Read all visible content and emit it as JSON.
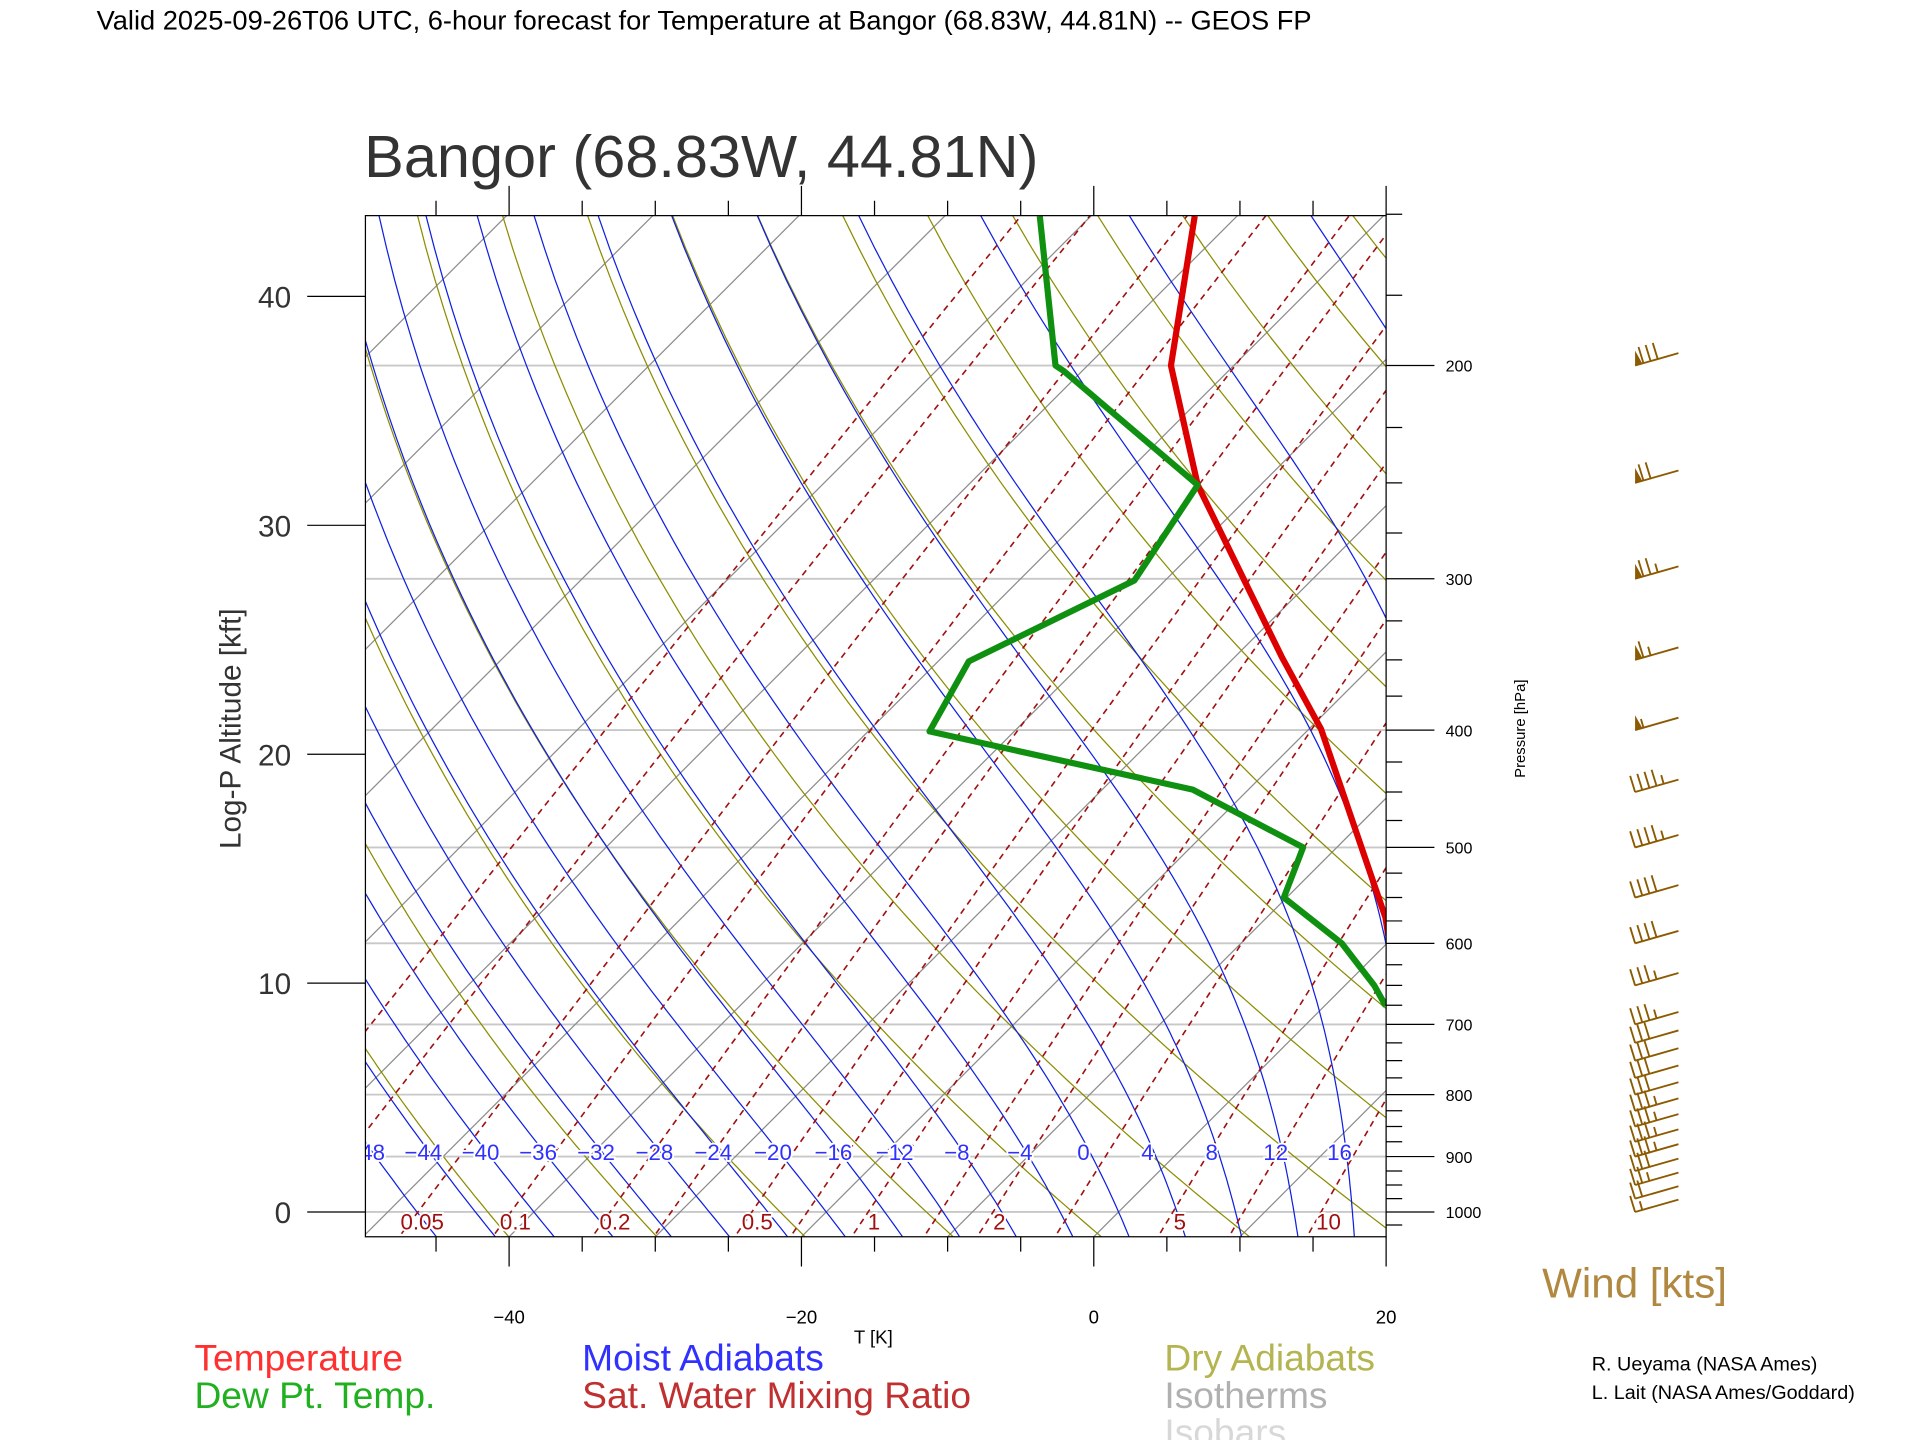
{
  "header": {
    "title": "Valid 2025-09-26T06 UTC, 6-hour forecast for Temperature at Bangor (68.83W, 44.81N) -- GEOS FP",
    "plot_title": "Bangor (68.83W, 44.81N)"
  },
  "chart_data": {
    "type": "line",
    "subtype": "skew-T log-P diagram",
    "title": "Bangor (68.83W, 44.81N)",
    "xlabel": "T [K]",
    "ylabel": "Log-P Altitude [kft]",
    "y2label": "Pressure [hPa]",
    "xlim": [
      -50,
      20
    ],
    "pressure_range_hpa": [
      1048,
      150
    ],
    "x_ticks": [
      -40,
      -20,
      0,
      20
    ],
    "x_tick_labels": [
      "−40",
      "−20",
      "0",
      "20"
    ],
    "altitude_ticks_kft": [
      0,
      10,
      20,
      30,
      40
    ],
    "altitude_tick_labels": [
      "0",
      "10",
      "20",
      "30",
      "40"
    ],
    "pressure_ticks": [
      200,
      300,
      400,
      500,
      600,
      700,
      800,
      900,
      1000
    ],
    "pressure_tick_labels": [
      "200",
      "300",
      "400",
      "500",
      "600",
      "700",
      "800",
      "900",
      "1000"
    ],
    "series": [
      {
        "name": "Temperature",
        "color": "#dd0000",
        "points": [
          [
            150.5,
            -62.9
          ],
          [
            200,
            -54.3
          ],
          [
            251,
            -44.3
          ],
          [
            348,
            -26.8
          ],
          [
            399,
            -19.2
          ],
          [
            571,
            -1.9
          ],
          [
            650,
            3.5
          ],
          [
            700,
            7.0
          ]
        ]
      },
      {
        "name": "Dew Pt. Temp.",
        "color": "#109010",
        "points": [
          [
            150.5,
            -73.5
          ],
          [
            200,
            -62.2
          ],
          [
            202,
            -61.3
          ],
          [
            251,
            -44.3
          ],
          [
            301,
            -42.1
          ],
          [
            351,
            -47.9
          ],
          [
            401,
            -45.8
          ],
          [
            448,
            -23.8
          ],
          [
            500,
            -12.3
          ],
          [
            550,
            -10.2
          ],
          [
            600,
            -3.1
          ],
          [
            650,
            2.0
          ],
          [
            676,
            4.2
          ]
        ]
      }
    ],
    "background_lines": {
      "isotherms_c": [
        -120,
        -110,
        -100,
        -90,
        -80,
        -70,
        -60,
        -50,
        -40,
        -30,
        -20,
        -10,
        0,
        10,
        20,
        30,
        40
      ],
      "dry_adiabats_k": [
        220,
        230,
        240,
        250,
        260,
        270,
        280,
        290,
        300,
        310,
        320,
        330,
        340,
        350,
        360,
        370,
        380,
        390,
        400,
        410,
        420,
        430,
        440,
        450,
        460,
        470,
        480
      ],
      "moist_adiabats_c": [
        -48,
        -44,
        -40,
        -36,
        -32,
        -28,
        -24,
        -20,
        -16,
        -12,
        -8,
        -4,
        0,
        4,
        8,
        12,
        16,
        20,
        24,
        28
      ],
      "moist_adiabat_labels": [
        "−48",
        "−44",
        "−40",
        "−36",
        "−32",
        "−28",
        "−24",
        "−20",
        "−16",
        "−12",
        "−8",
        "−4",
        "0",
        "4",
        "8",
        "12",
        "16"
      ],
      "mixing_ratio_lines_gkg": [
        0.01,
        0.02,
        0.05,
        0.1,
        0.2,
        0.3,
        0.5,
        0.7,
        1,
        1.5,
        2,
        3,
        5,
        7,
        10,
        15,
        20
      ],
      "mixing_ratio_labels": [
        [
          "0.05",
          0.05
        ],
        [
          "0.1",
          0.1
        ],
        [
          "0.2",
          0.2
        ],
        [
          "0.5",
          0.5
        ],
        [
          "1",
          1
        ],
        [
          "2",
          2
        ],
        [
          "5",
          5
        ],
        [
          "10",
          10
        ]
      ],
      "isobars_hpa": [
        200,
        300,
        400,
        500,
        600,
        700,
        800,
        900,
        1000
      ]
    },
    "wind": {
      "label": "Wind [kts]",
      "levels": [
        {
          "p": 200,
          "kts": 80
        },
        {
          "p": 250,
          "kts": 70
        },
        {
          "p": 300,
          "kts": 75
        },
        {
          "p": 350,
          "kts": 65
        },
        {
          "p": 400,
          "kts": 55
        },
        {
          "p": 450,
          "kts": 45
        },
        {
          "p": 500,
          "kts": 45
        },
        {
          "p": 550,
          "kts": 40
        },
        {
          "p": 600,
          "kts": 40
        },
        {
          "p": 650,
          "kts": 35
        },
        {
          "p": 700,
          "kts": 35
        },
        {
          "p": 725,
          "kts": 30
        },
        {
          "p": 750,
          "kts": 30
        },
        {
          "p": 775,
          "kts": 30
        },
        {
          "p": 800,
          "kts": 30
        },
        {
          "p": 825,
          "kts": 35
        },
        {
          "p": 850,
          "kts": 35
        },
        {
          "p": 875,
          "kts": 35
        },
        {
          "p": 900,
          "kts": 35
        },
        {
          "p": 925,
          "kts": 30
        },
        {
          "p": 950,
          "kts": 25
        },
        {
          "p": 975,
          "kts": 20
        },
        {
          "p": 1000,
          "kts": 15
        }
      ]
    }
  },
  "legend": {
    "temperature": "Temperature",
    "dewpoint": "Dew Pt. Temp.",
    "moist": "Moist Adiabats",
    "mixing": "Sat. Water Mixing Ratio",
    "dry": "Dry Adiabats",
    "isotherms": "Isotherms",
    "isobars": "Isobars"
  },
  "credits": {
    "line1": "R. Ueyama (NASA Ames)",
    "line2": "L. Lait (NASA Ames/Goddard)"
  },
  "colors": {
    "temperature": "#dd0000",
    "dewpoint": "#109010",
    "moist": "#1020e0",
    "mixing": "#a01010",
    "dry": "#8c8c00",
    "isotherm": "#8c8c8c",
    "isobar": "#c8c8c8",
    "wind": "#8c5a00"
  }
}
